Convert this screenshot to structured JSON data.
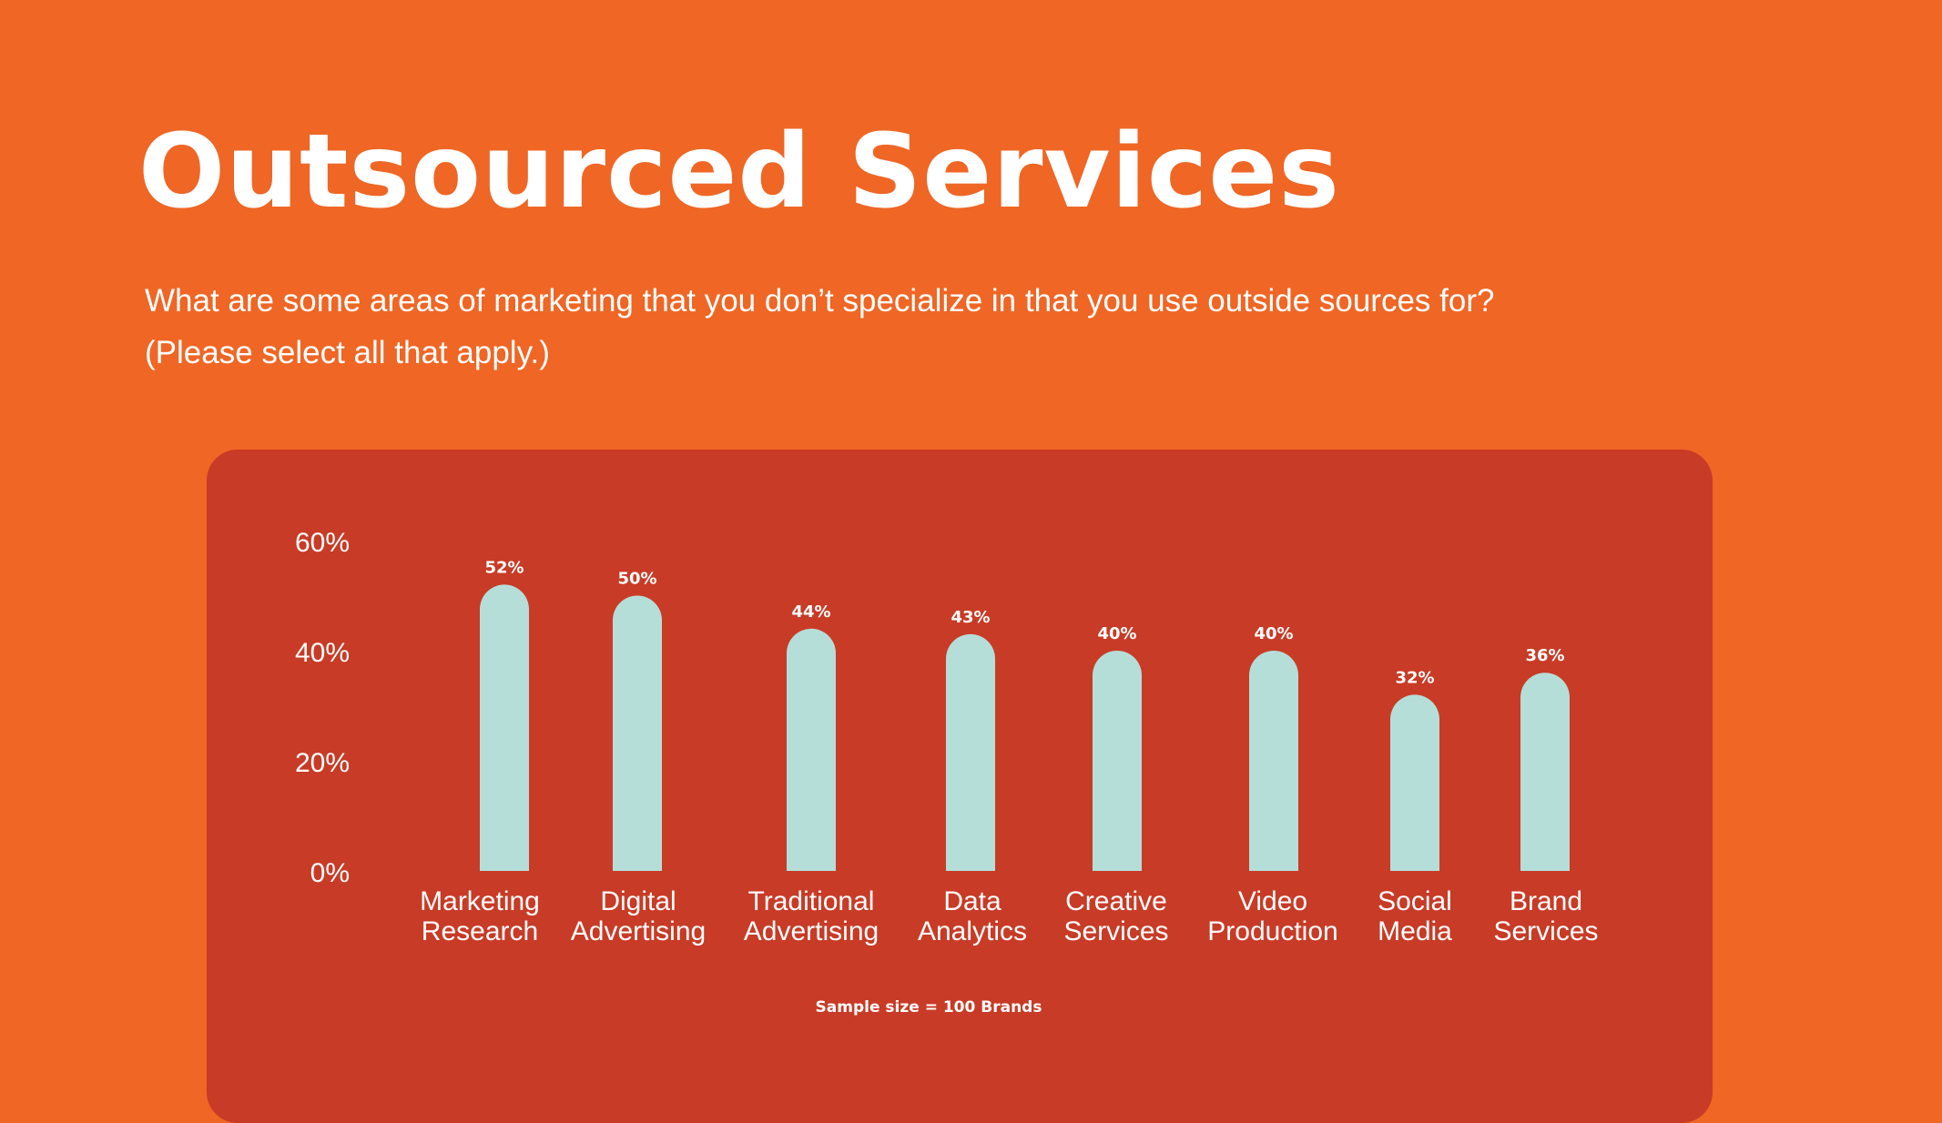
{
  "page": {
    "title": "Outsourced Services",
    "question_line1": "What are some areas of marketing that you don’t specialize in that you use outside sources for?",
    "question_line2": "(Please select all that apply.)",
    "footnote": "Sample size = 100 Brands"
  },
  "colors": {
    "background": "#EF6625",
    "panel": "#C83B26",
    "bar": "#B5DED9",
    "text": "#FFFFFF"
  },
  "chart_data": {
    "type": "bar",
    "categories": [
      [
        "Marketing",
        "Research"
      ],
      [
        "Digital",
        "Advertising"
      ],
      [
        "Traditional",
        "Advertising"
      ],
      [
        "Data",
        "Analytics"
      ],
      [
        "Creative",
        "Services"
      ],
      [
        "Video",
        "Production"
      ],
      [
        "Social",
        "Media"
      ],
      [
        "Brand",
        "Services"
      ]
    ],
    "values": [
      52,
      50,
      44,
      43,
      40,
      40,
      32,
      36
    ],
    "value_labels": [
      "52%",
      "50%",
      "44%",
      "43%",
      "40%",
      "40%",
      "32%",
      "36%"
    ],
    "yticks": [
      0,
      20,
      40,
      60
    ],
    "ytick_labels": [
      "0%",
      "20%",
      "40%",
      "60%"
    ],
    "ylim": [
      0,
      60
    ],
    "grid": false,
    "legend": "none"
  }
}
